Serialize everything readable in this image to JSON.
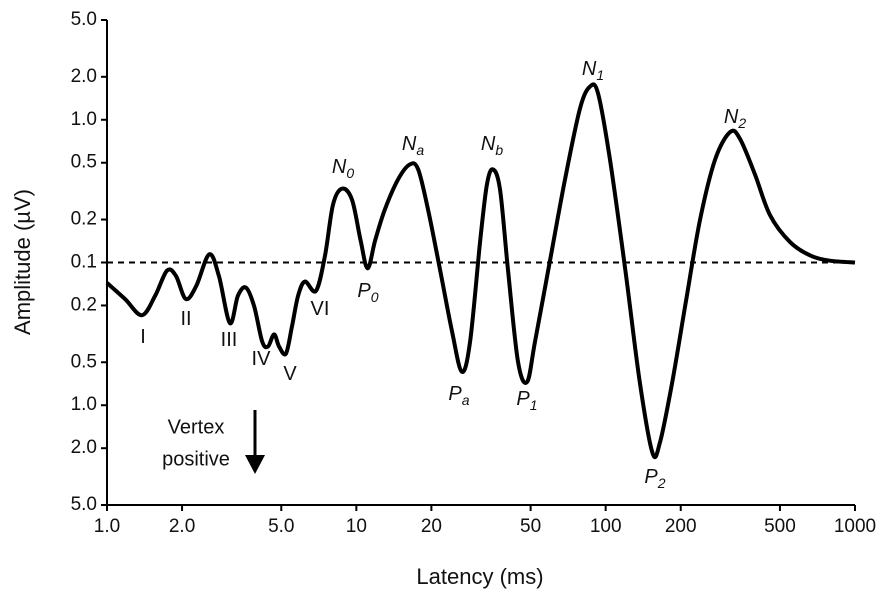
{
  "chart_data": {
    "type": "line",
    "x_label": "Latency (ms)",
    "y_label": "Amplitude (µV)",
    "log_x": true,
    "y_scale": "signed-log",
    "xlim": [
      1,
      1000
    ],
    "xticks": [
      {
        "value": 1,
        "label": "1.0"
      },
      {
        "value": 2,
        "label": "2.0"
      },
      {
        "value": 5,
        "label": "5.0"
      },
      10,
      20,
      50,
      100,
      200,
      500,
      1000
    ],
    "ylim": [
      -5,
      5
    ],
    "yticks": [
      {
        "value": 5,
        "label": "5.0"
      },
      {
        "value": 2,
        "label": "2.0"
      },
      {
        "value": 1,
        "label": "1.0"
      },
      0.5,
      0.2,
      0.1,
      {
        "value": -0.2,
        "label": "0.2"
      },
      {
        "value": -0.5,
        "label": "0.5"
      },
      {
        "value": -1,
        "label": "1.0"
      },
      {
        "value": -2,
        "label": "2.0"
      },
      {
        "value": -5,
        "label": "5.0"
      }
    ],
    "reference_line": 0.1,
    "color": "#000000",
    "x": [
      1.0,
      1.18,
      1.38,
      1.56,
      1.74,
      1.89,
      2.07,
      2.28,
      2.57,
      2.81,
      3.11,
      3.35,
      3.61,
      3.89,
      4.19,
      4.42,
      4.68,
      4.9,
      5.22,
      5.52,
      5.84,
      6.22,
      6.89,
      7.49,
      8.06,
      8.76,
      9.61,
      10.4,
      11.1,
      11.9,
      13.0,
      14.7,
      16.4,
      17.7,
      19.4,
      21.7,
      24.2,
      26.5,
      28.6,
      31.4,
      33.4,
      35.3,
      37.7,
      40.6,
      44.5,
      48.4,
      52.1,
      59.8,
      68.7,
      78.9,
      86.6,
      93.2,
      104,
      120,
      137,
      154,
      165,
      185,
      210,
      239,
      275,
      316,
      346,
      397,
      456,
      549,
      661,
      794,
      1000
    ],
    "values": [
      -0.139,
      -0.18,
      -0.234,
      -0.171,
      -0.114,
      -0.124,
      -0.18,
      -0.146,
      0.114,
      -0.124,
      -0.266,
      -0.171,
      -0.15,
      -0.202,
      -0.357,
      -0.388,
      -0.319,
      -0.388,
      -0.435,
      -0.28,
      -0.171,
      -0.136,
      -0.158,
      0.112,
      0.254,
      0.329,
      0.275,
      0.143,
      -0.11,
      0.143,
      0.234,
      0.382,
      0.487,
      0.449,
      0.234,
      -0.114,
      -0.304,
      -0.583,
      -0.357,
      0.143,
      0.352,
      0.449,
      0.324,
      -0.114,
      -0.495,
      -0.687,
      -0.357,
      0.103,
      0.382,
      1.2,
      1.71,
      1.53,
      0.529,
      -0.114,
      -0.687,
      -2.15,
      -1.83,
      -0.687,
      -0.186,
      0.199,
      0.529,
      0.822,
      0.733,
      0.414,
      0.215,
      0.139,
      0.112,
      0.103,
      0.1
    ],
    "wave_labels": [
      {
        "main": "I"
      },
      {
        "main": "II"
      },
      {
        "main": "III"
      },
      {
        "main": "IV"
      },
      {
        "main": "V"
      },
      {
        "main": "VI"
      },
      {
        "main": "N",
        "sub": "0"
      },
      {
        "main": "P",
        "sub": "0"
      },
      {
        "main": "N",
        "sub": "a"
      },
      {
        "main": "P",
        "sub": "a"
      },
      {
        "main": "N",
        "sub": "b"
      },
      {
        "main": "P",
        "sub": "1"
      },
      {
        "main": "N",
        "sub": "1"
      },
      {
        "main": "P",
        "sub": "2"
      },
      {
        "main": "N",
        "sub": "2"
      }
    ],
    "note": [
      "Vertex",
      "positive"
    ]
  }
}
